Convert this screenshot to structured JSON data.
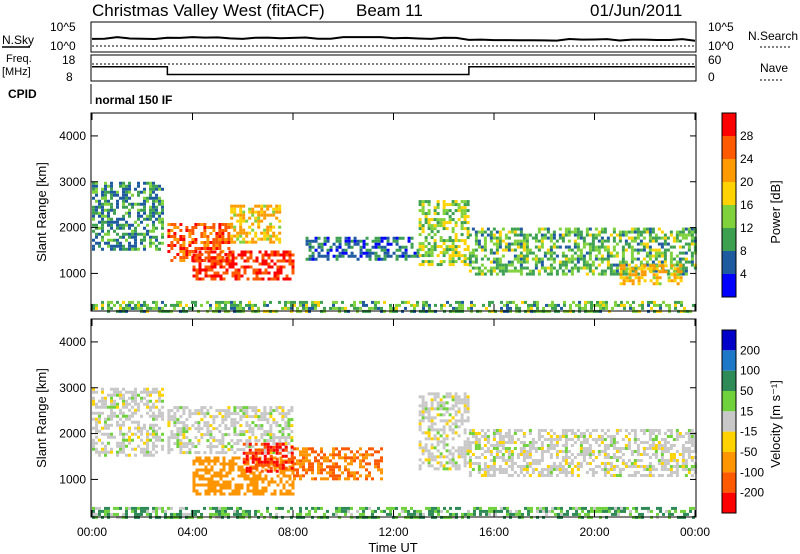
{
  "header": {
    "title": "Christmas Valley West (fitACF)",
    "beam": "Beam 11",
    "date": "01/Jun/2011"
  },
  "top_panels": {
    "nsky_label": "N.Sky",
    "nsearch_label": "N.Search",
    "nsky_ticks": [
      "10^5",
      "10^0"
    ],
    "nsearch_ticks": [
      "10^5",
      "10^0"
    ],
    "freq_label_1": "Freq.",
    "freq_label_2": "[MHz]",
    "freq_ticks": [
      "18",
      "8"
    ],
    "nave_label": "Nave",
    "nave_ticks": [
      "60",
      "0"
    ],
    "cpid_label": "CPID",
    "cpid_value": "normal 150 IF"
  },
  "axes": {
    "ylabel": "Slant Range [km]",
    "yticks": [
      "4000",
      "3000",
      "2000",
      "1000"
    ],
    "xlabel": "Time UT",
    "xticks": [
      "00:00",
      "04:00",
      "08:00",
      "12:00",
      "16:00",
      "20:00",
      "00:00"
    ]
  },
  "colorbars": {
    "power": {
      "label": "Power [dB]",
      "ticks": [
        "28",
        "24",
        "20",
        "16",
        "12",
        "8",
        "4"
      ],
      "colors": [
        "#ff0000",
        "#ff5a00",
        "#ff9b00",
        "#ffd200",
        "#7fd23c",
        "#3ca050",
        "#1e5aa0",
        "#0000ff"
      ]
    },
    "velocity": {
      "label": "Velocity [m s⁻¹]",
      "ticks": [
        "200",
        "100",
        "50",
        "15",
        "-15",
        "-50",
        "-100",
        "-200"
      ],
      "colors": [
        "#0000c8",
        "#1e78c8",
        "#2e8b57",
        "#6fd23c",
        "#c8c8c8",
        "#ffd200",
        "#ff9600",
        "#ff5a00",
        "#ff0000"
      ]
    }
  },
  "chart_data": {
    "type": "heatmap",
    "xlim": [
      "00:00",
      "24:00"
    ],
    "ylim": [
      180,
      4500
    ],
    "power_regions": [
      {
        "t": [
          0.0,
          2.8
        ],
        "r": [
          1500,
          3000
        ],
        "db": 10
      },
      {
        "t": [
          3.0,
          5.5
        ],
        "r": [
          1300,
          2100
        ],
        "db": 24
      },
      {
        "t": [
          5.5,
          7.5
        ],
        "r": [
          1700,
          2500
        ],
        "db": 18
      },
      {
        "t": [
          4.0,
          8.0
        ],
        "r": [
          900,
          1500
        ],
        "db": 26
      },
      {
        "t": [
          8.5,
          13.0
        ],
        "r": [
          1300,
          1800
        ],
        "db": 8
      },
      {
        "t": [
          13.0,
          15.0
        ],
        "r": [
          1200,
          2600
        ],
        "db": 14
      },
      {
        "t": [
          15.0,
          24.0
        ],
        "r": [
          1000,
          2000
        ],
        "db": 12
      },
      {
        "t": [
          21.0,
          23.5
        ],
        "r": [
          800,
          1200
        ],
        "db": 18
      },
      {
        "t": [
          0.0,
          24.0
        ],
        "r": [
          180,
          400
        ],
        "db": 12
      }
    ],
    "velocity_regions": [
      {
        "t": [
          0.0,
          2.8
        ],
        "r": [
          1500,
          3000
        ],
        "v": 0
      },
      {
        "t": [
          3.0,
          8.0
        ],
        "r": [
          1600,
          2600
        ],
        "v": 0
      },
      {
        "t": [
          4.0,
          8.0
        ],
        "r": [
          700,
          1500
        ],
        "v": -80
      },
      {
        "t": [
          6.0,
          8.0
        ],
        "r": [
          1200,
          1800
        ],
        "v": -200
      },
      {
        "t": [
          8.0,
          11.5
        ],
        "r": [
          1000,
          1700
        ],
        "v": -100
      },
      {
        "t": [
          13.0,
          15.0
        ],
        "r": [
          1200,
          2900
        ],
        "v": 0
      },
      {
        "t": [
          15.0,
          24.0
        ],
        "r": [
          1100,
          2100
        ],
        "v": 0
      },
      {
        "t": [
          0.0,
          24.0
        ],
        "r": [
          180,
          400
        ],
        "v": 30
      }
    ],
    "freq_mhz": [
      {
        "t": [
          0.0,
          3.0
        ],
        "v": 13.5
      },
      {
        "t": [
          3.0,
          15.0
        ],
        "v": 10.5
      },
      {
        "t": [
          15.0,
          24.0
        ],
        "v": 13.5
      }
    ],
    "grid": false
  }
}
